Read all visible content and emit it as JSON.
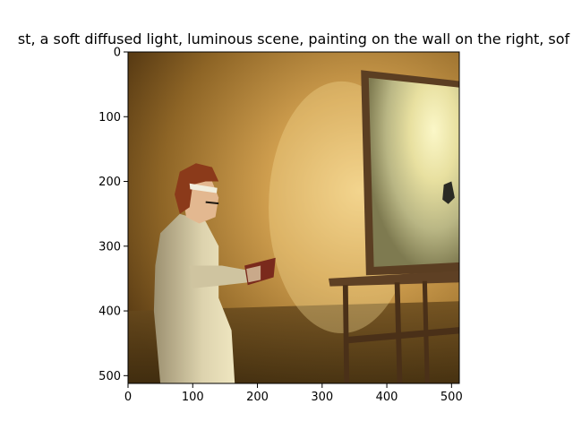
{
  "chart_data": {
    "type": "image",
    "title": "st,  a soft diffused light, luminous scene, painting on the wall on the right, sof",
    "xlabel": "",
    "ylabel": "",
    "xlim": [
      0,
      512
    ],
    "ylim": [
      512,
      0
    ],
    "x_ticks": [
      0,
      100,
      200,
      300,
      400,
      500
    ],
    "y_ticks": [
      0,
      100,
      200,
      300,
      400,
      500
    ],
    "grid": false,
    "colors": {
      "wall_light": "#e9c074",
      "wall_mid": "#b4863c",
      "wall_dark": "#5e4216",
      "floor": "#4a3414",
      "easel": "#5b3e22",
      "canvas_glow": "#f6f0b2",
      "canvas_edge": "#8c8a5a",
      "figure_coat": "#d9d0ac",
      "hair": "#8b3a1a",
      "book": "#7a2a1c"
    }
  }
}
